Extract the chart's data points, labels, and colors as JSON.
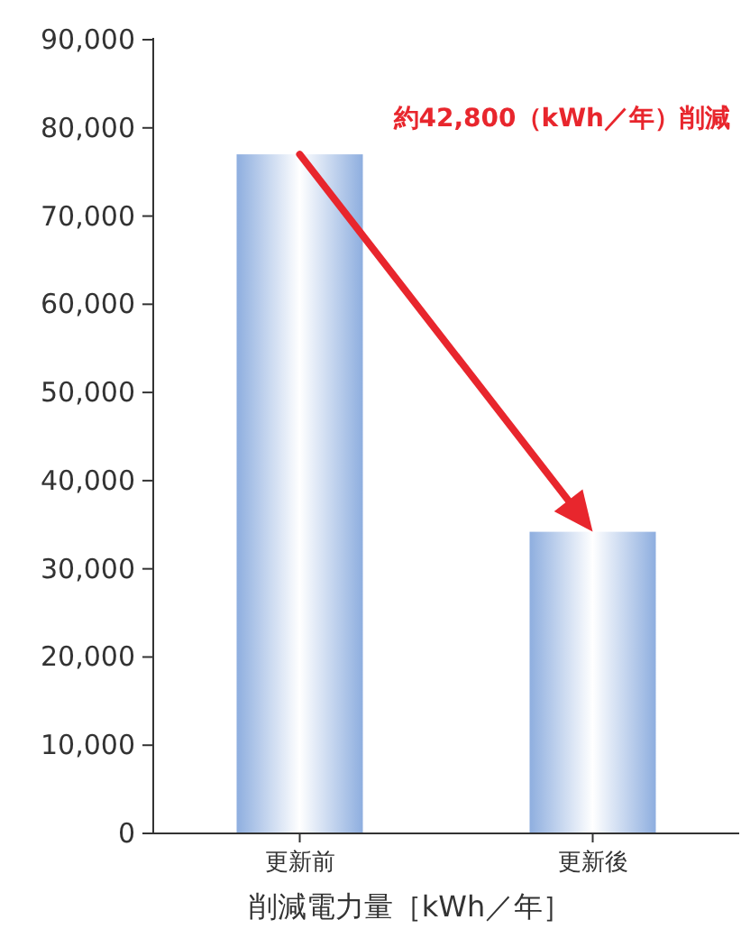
{
  "chart_data": {
    "type": "bar",
    "categories": [
      "更新前",
      "更新後"
    ],
    "values": [
      77000,
      34200
    ],
    "color": "#8eaedf",
    "ylim": [
      0,
      90000
    ],
    "yticks": [
      0,
      {
        "value": 10000,
        "label": "10,000"
      },
      {
        "value": 20000,
        "label": "20,000"
      },
      {
        "value": 30000,
        "label": "30,000"
      },
      {
        "value": 40000,
        "label": "40,000"
      },
      {
        "value": 50000,
        "label": "50,000"
      },
      {
        "value": 60000,
        "label": "60,000"
      },
      {
        "value": 70000,
        "label": "70,000"
      },
      {
        "value": 80000,
        "label": "80,000"
      },
      {
        "value": 90000,
        "label": "90,000"
      }
    ],
    "xlabel": "削減電力量［kWh／年］",
    "annotations": [
      "約42,800（kWh／年）削減"
    ],
    "grid": false
  }
}
